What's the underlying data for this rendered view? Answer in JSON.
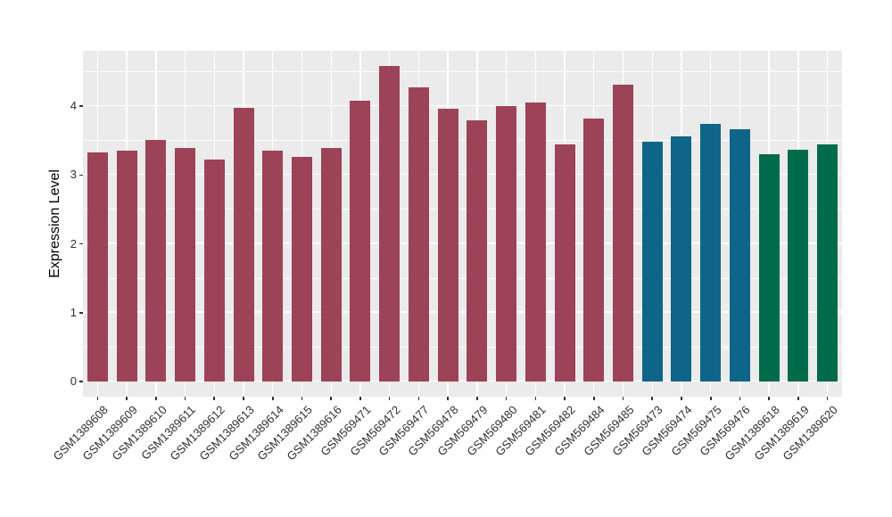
{
  "chart_data": {
    "type": "bar",
    "title": "",
    "xlabel": "",
    "ylabel": "Expression Level",
    "ylim": [
      0,
      4.8
    ],
    "yticks": [
      0,
      1,
      2,
      3,
      4
    ],
    "ytick_labels": [
      "0",
      "1",
      "2",
      "3",
      "4"
    ],
    "grid": "on",
    "legend_position": "none",
    "categories": [
      "GSM1389608",
      "GSM1389609",
      "GSM1389610",
      "GSM1389611",
      "GSM1389612",
      "GSM1389613",
      "GSM1389614",
      "GSM1389615",
      "GSM1389616",
      "GSM569471",
      "GSM569472",
      "GSM569477",
      "GSM569478",
      "GSM569479",
      "GSM569480",
      "GSM569481",
      "GSM569482",
      "GSM569484",
      "GSM569485",
      "GSM569473",
      "GSM569474",
      "GSM569475",
      "GSM569476",
      "GSM1389618",
      "GSM1389619",
      "GSM1389620"
    ],
    "values": [
      3.33,
      3.36,
      3.51,
      3.4,
      3.22,
      3.98,
      3.36,
      3.26,
      3.39,
      4.08,
      4.59,
      4.28,
      3.97,
      3.79,
      4.0,
      4.05,
      3.44,
      3.82,
      4.32,
      3.48,
      3.56,
      3.75,
      3.66,
      3.3,
      3.37,
      3.44
    ],
    "bar_colors": [
      "#9D4357",
      "#9D4357",
      "#9D4357",
      "#9D4357",
      "#9D4357",
      "#9D4357",
      "#9D4357",
      "#9D4357",
      "#9D4357",
      "#9D4357",
      "#9D4357",
      "#9D4357",
      "#9D4357",
      "#9D4357",
      "#9D4357",
      "#9D4357",
      "#9D4357",
      "#9D4357",
      "#9D4357",
      "#0F6589",
      "#0F6589",
      "#0F6589",
      "#0F6589",
      "#006B4A",
      "#006B4A",
      "#006B4A"
    ],
    "palette": {
      "group1_red": "#9D4357",
      "group2_teal": "#0F6589",
      "group3_green": "#006B4A"
    },
    "panel_background": "#EBEBEB",
    "grid_color": "#FFFFFF",
    "axis_text_color": "#2F2F2F"
  }
}
